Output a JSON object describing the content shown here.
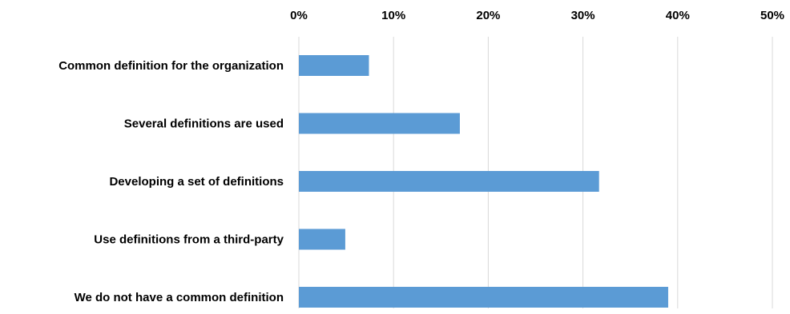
{
  "chart_data": {
    "type": "bar",
    "orientation": "horizontal",
    "title": "",
    "xlabel": "",
    "ylabel": "",
    "categories": [
      "Common definition for the organization",
      "Several definitions are used",
      "Developing a set of definitions",
      "Use definitions from a third-party",
      "We do not have a common definition"
    ],
    "values": [
      7.4,
      17.0,
      31.7,
      4.9,
      39.0
    ],
    "unit": "%",
    "xlim": [
      0,
      50
    ],
    "xticks": [
      0,
      10,
      20,
      30,
      40,
      50
    ],
    "xtick_labels": [
      "0%",
      "10%",
      "20%",
      "30%",
      "40%",
      "50%"
    ],
    "x_axis_position": "top",
    "grid": true,
    "legend": "none",
    "bar_color": "#5b9bd5",
    "grid_color": "#d9d9d9"
  }
}
